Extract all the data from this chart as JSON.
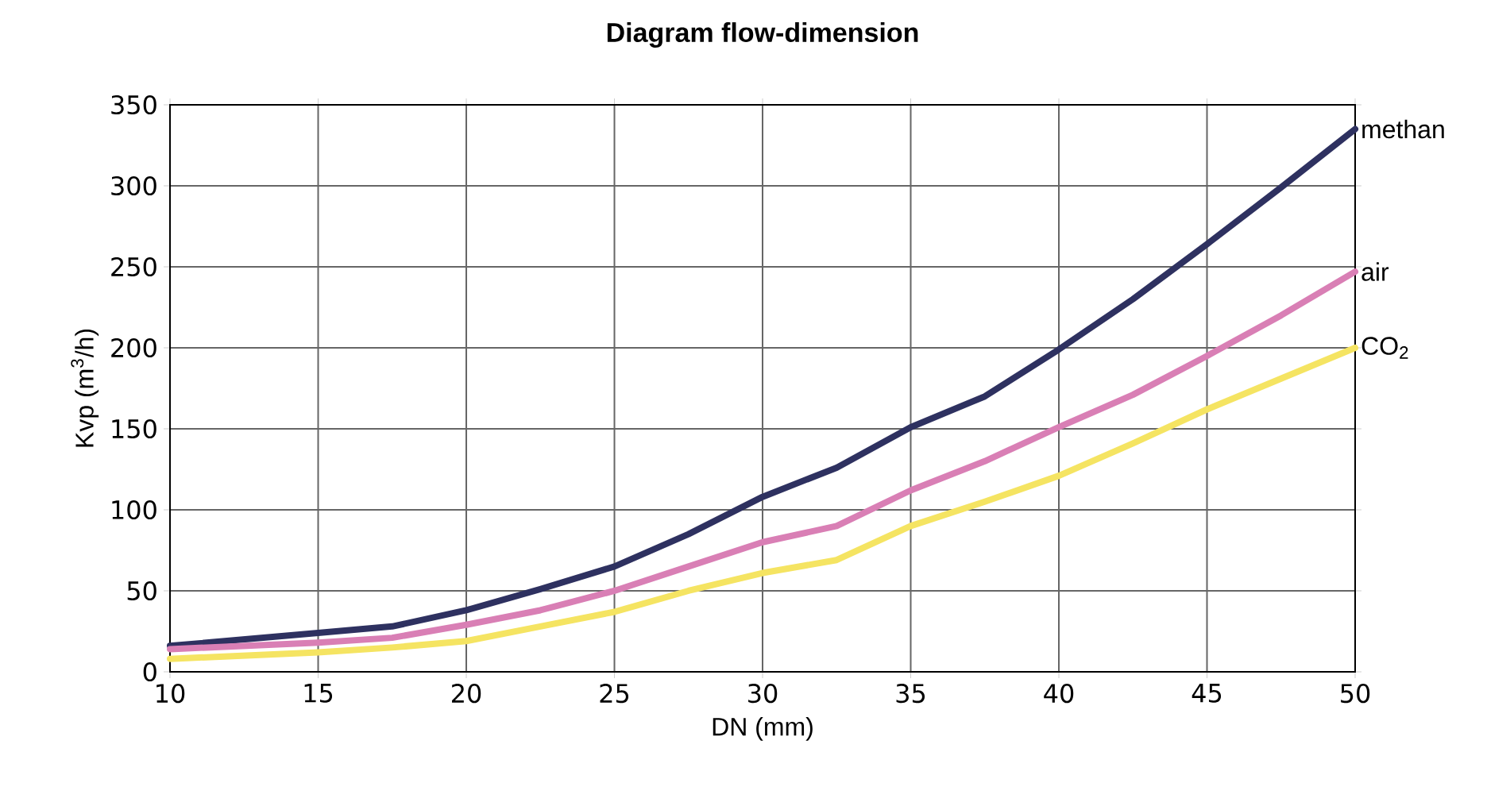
{
  "chart_data": {
    "type": "line",
    "title": "Diagram flow-dimension",
    "xlabel": "DN (mm)",
    "ylabel": "Kvp (m$^{3}$/h)",
    "x": [
      10,
      15,
      17.5,
      20,
      22.5,
      25,
      27.5,
      30,
      32.5,
      35,
      37.5,
      40,
      42.5,
      45,
      47.5,
      50
    ],
    "series": [
      {
        "name": "methan",
        "color": "#2e3160",
        "values": [
          16,
          24,
          28,
          38,
          51,
          65,
          85,
          108,
          126,
          151,
          170,
          199,
          230,
          264,
          299,
          335
        ]
      },
      {
        "name": "air",
        "color": "#d97fb5",
        "values": [
          14,
          18,
          21,
          29,
          38,
          50,
          65,
          80,
          90,
          112,
          130,
          151,
          171,
          195,
          220,
          247
        ]
      },
      {
        "name": "CO$_{2}$",
        "color": "#f5e462",
        "values": [
          8,
          12,
          15,
          19,
          28,
          37,
          50,
          61,
          69,
          90,
          105,
          121,
          141,
          162,
          181,
          200
        ]
      }
    ],
    "xlim": [
      10,
      50
    ],
    "ylim": [
      0,
      350
    ],
    "xticks": [
      10,
      15,
      20,
      25,
      30,
      35,
      40,
      45,
      50
    ],
    "yticks": [
      0,
      50,
      100,
      150,
      200,
      250,
      300,
      350
    ],
    "grid": true,
    "legend": false,
    "marker": "none",
    "line_style": "solid"
  }
}
